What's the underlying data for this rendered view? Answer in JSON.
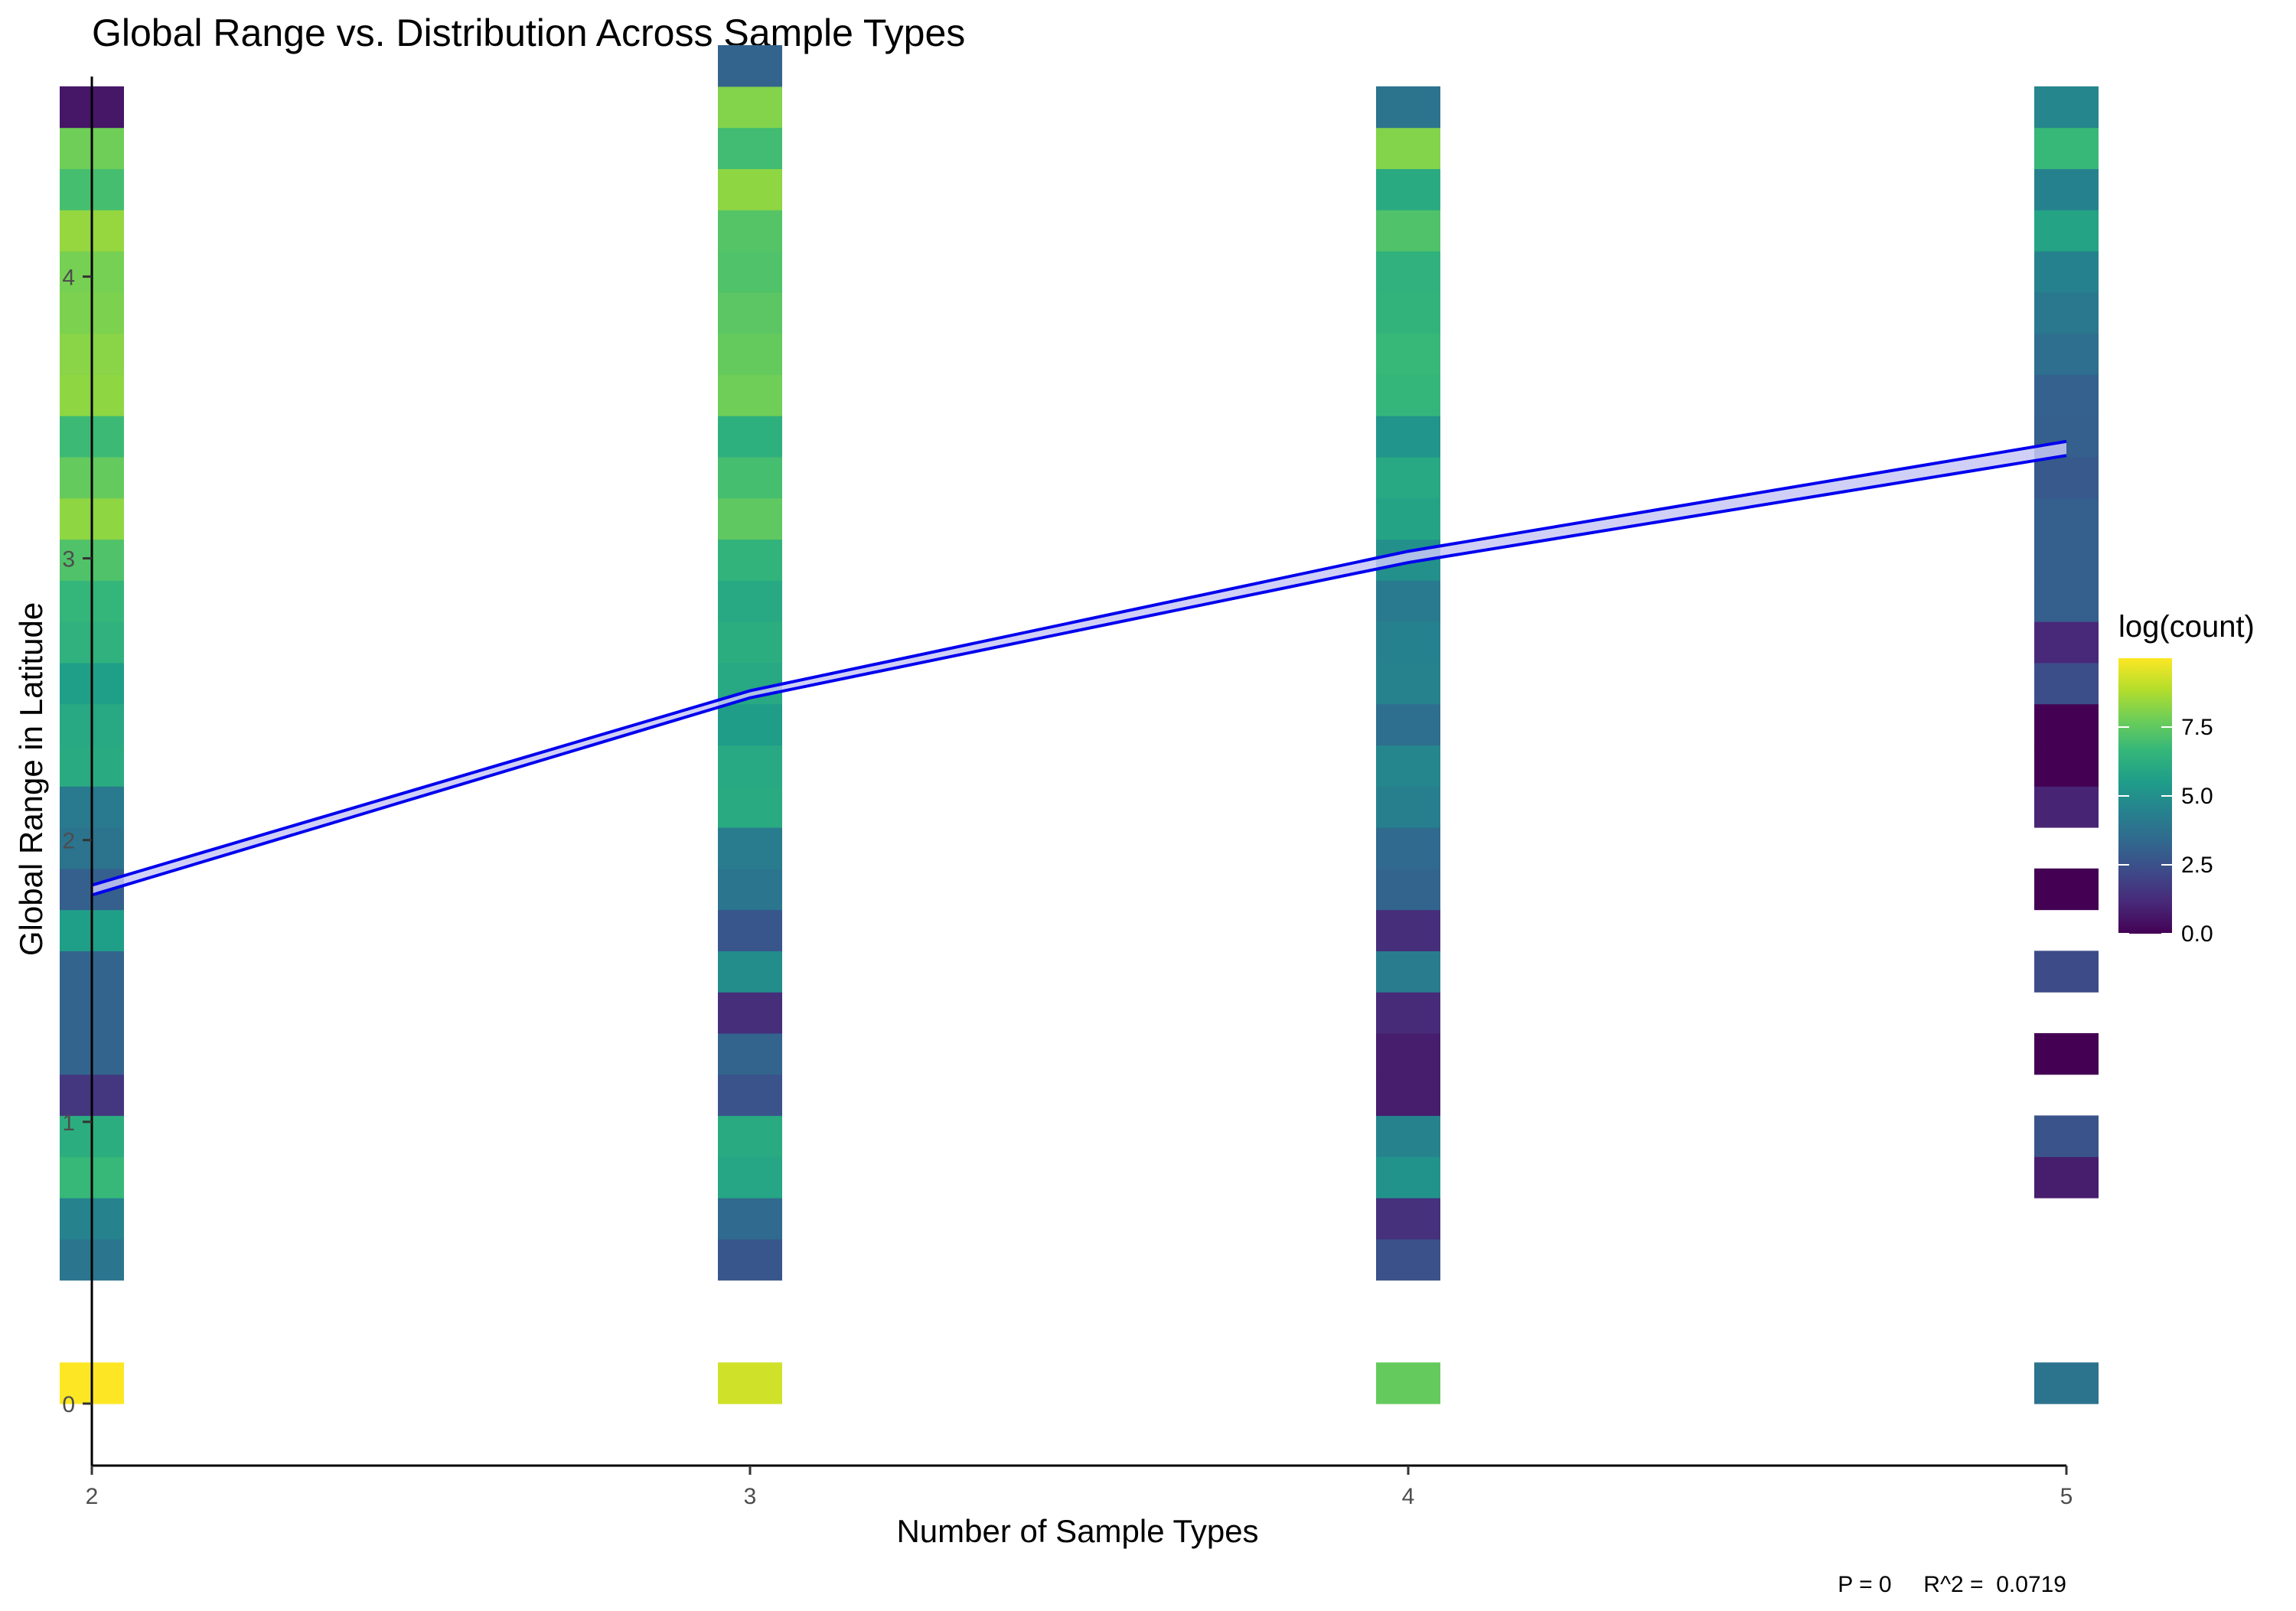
{
  "chart_data": {
    "type": "heatmap",
    "title": "Global Range vs. Distribution Across Sample Types",
    "xlabel": "Number of Sample Types",
    "ylabel": "Global Range in Latitude",
    "xlim": [
      2,
      5
    ],
    "ylim": [
      -0.22,
      4.71
    ],
    "x_ticks": [
      2,
      3,
      4,
      5
    ],
    "y_ticks": [
      0,
      1,
      2,
      3,
      4
    ],
    "x_tick_labels": [
      "2",
      "3",
      "4",
      "5"
    ],
    "y_tick_labels": [
      "0",
      "1",
      "2",
      "3",
      "4"
    ],
    "bin_height": 0.1461,
    "fill_scale": {
      "name": "log(count)",
      "min": 0,
      "max": 10.0,
      "breaks": [
        0,
        2.5,
        5,
        7.5
      ],
      "break_labels": [
        "0.0",
        "2.5",
        "5.0",
        "7.5"
      ],
      "palette": "viridis"
    },
    "columns": [
      {
        "x": 2,
        "cells": [
          {
            "y": 0.0,
            "fill": 10.0
          },
          {
            "y": 0.4383,
            "fill": 3.9
          },
          {
            "y": 0.5844,
            "fill": 4.5
          },
          {
            "y": 0.7305,
            "fill": 6.7
          },
          {
            "y": 0.8766,
            "fill": 6.2
          },
          {
            "y": 1.0227,
            "fill": 1.6
          },
          {
            "y": 1.1688,
            "fill": 3.2
          },
          {
            "y": 1.3149,
            "fill": 3.2
          },
          {
            "y": 1.461,
            "fill": 3.2
          },
          {
            "y": 1.6071,
            "fill": 5.6
          },
          {
            "y": 1.7532,
            "fill": 3.0
          },
          {
            "y": 1.8993,
            "fill": 3.8
          },
          {
            "y": 2.0454,
            "fill": 4.1
          },
          {
            "y": 2.1915,
            "fill": 6.1
          },
          {
            "y": 2.3376,
            "fill": 6.0
          },
          {
            "y": 2.4837,
            "fill": 5.6
          },
          {
            "y": 2.6298,
            "fill": 6.4
          },
          {
            "y": 2.7759,
            "fill": 6.6
          },
          {
            "y": 2.922,
            "fill": 7.2
          },
          {
            "y": 3.0681,
            "fill": 8.3
          },
          {
            "y": 3.2142,
            "fill": 7.6
          },
          {
            "y": 3.3603,
            "fill": 6.8
          },
          {
            "y": 3.5064,
            "fill": 8.3
          },
          {
            "y": 3.6525,
            "fill": 8.2
          },
          {
            "y": 3.7986,
            "fill": 8.0
          },
          {
            "y": 3.9447,
            "fill": 7.9
          },
          {
            "y": 4.0908,
            "fill": 8.4
          },
          {
            "y": 4.2369,
            "fill": 7.0
          },
          {
            "y": 4.383,
            "fill": 7.8
          },
          {
            "y": 4.5291,
            "fill": 0.6
          }
        ]
      },
      {
        "x": 3,
        "cells": [
          {
            "y": 0.0,
            "fill": 9.3
          },
          {
            "y": 0.4383,
            "fill": 2.7
          },
          {
            "y": 0.5844,
            "fill": 3.4
          },
          {
            "y": 0.7305,
            "fill": 5.9
          },
          {
            "y": 0.8766,
            "fill": 6.1
          },
          {
            "y": 1.0227,
            "fill": 2.6
          },
          {
            "y": 1.1688,
            "fill": 3.2
          },
          {
            "y": 1.3149,
            "fill": 1.3
          },
          {
            "y": 1.461,
            "fill": 4.9
          },
          {
            "y": 1.6071,
            "fill": 2.7
          },
          {
            "y": 1.7532,
            "fill": 3.9
          },
          {
            "y": 1.8993,
            "fill": 4.2
          },
          {
            "y": 2.0454,
            "fill": 6.1
          },
          {
            "y": 2.1915,
            "fill": 6.0
          },
          {
            "y": 2.3376,
            "fill": 5.5
          },
          {
            "y": 2.4837,
            "fill": 6.0
          },
          {
            "y": 2.6298,
            "fill": 6.2
          },
          {
            "y": 2.7759,
            "fill": 6.0
          },
          {
            "y": 2.922,
            "fill": 6.5
          },
          {
            "y": 3.0681,
            "fill": 7.5
          },
          {
            "y": 3.2142,
            "fill": 7.0
          },
          {
            "y": 3.3603,
            "fill": 6.3
          },
          {
            "y": 3.5064,
            "fill": 7.8
          },
          {
            "y": 3.6525,
            "fill": 7.6
          },
          {
            "y": 3.7986,
            "fill": 7.4
          },
          {
            "y": 3.9447,
            "fill": 7.2
          },
          {
            "y": 4.0908,
            "fill": 7.3
          },
          {
            "y": 4.2369,
            "fill": 8.3
          },
          {
            "y": 4.383,
            "fill": 6.9
          },
          {
            "y": 4.5291,
            "fill": 8.1
          },
          {
            "y": 4.6752,
            "fill": 3.2
          }
        ]
      },
      {
        "x": 4,
        "cells": [
          {
            "y": 0.0,
            "fill": 7.6
          },
          {
            "y": 0.4383,
            "fill": 2.5
          },
          {
            "y": 0.5844,
            "fill": 1.4
          },
          {
            "y": 0.7305,
            "fill": 5.1
          },
          {
            "y": 0.8766,
            "fill": 4.5
          },
          {
            "y": 1.0227,
            "fill": 0.8
          },
          {
            "y": 1.1688,
            "fill": 0.8
          },
          {
            "y": 1.3149,
            "fill": 1.2
          },
          {
            "y": 1.461,
            "fill": 4.2
          },
          {
            "y": 1.6071,
            "fill": 1.3
          },
          {
            "y": 1.7532,
            "fill": 3.2
          },
          {
            "y": 1.8993,
            "fill": 3.4
          },
          {
            "y": 2.0454,
            "fill": 4.3
          },
          {
            "y": 2.1915,
            "fill": 4.6
          },
          {
            "y": 2.3376,
            "fill": 3.6
          },
          {
            "y": 2.4837,
            "fill": 4.5
          },
          {
            "y": 2.6298,
            "fill": 4.4
          },
          {
            "y": 2.7759,
            "fill": 4.1
          },
          {
            "y": 2.922,
            "fill": 5.0
          },
          {
            "y": 3.0681,
            "fill": 5.8
          },
          {
            "y": 3.2142,
            "fill": 6.0
          },
          {
            "y": 3.3603,
            "fill": 5.2
          },
          {
            "y": 3.5064,
            "fill": 6.6
          },
          {
            "y": 3.6525,
            "fill": 6.7
          },
          {
            "y": 3.7986,
            "fill": 6.5
          },
          {
            "y": 3.9447,
            "fill": 6.4
          },
          {
            "y": 4.0908,
            "fill": 7.2
          },
          {
            "y": 4.2369,
            "fill": 6.1
          },
          {
            "y": 4.383,
            "fill": 8.1
          },
          {
            "y": 4.5291,
            "fill": 3.8
          }
        ]
      },
      {
        "x": 5,
        "cells": [
          {
            "y": 0.0,
            "fill": 3.8
          },
          {
            "y": 0.7305,
            "fill": 0.8
          },
          {
            "y": 0.8766,
            "fill": 2.6
          },
          {
            "y": 1.1688,
            "fill": 0.0
          },
          {
            "y": 1.461,
            "fill": 2.3
          },
          {
            "y": 1.7532,
            "fill": 0.0
          },
          {
            "y": 2.0454,
            "fill": 1.0
          },
          {
            "y": 2.1915,
            "fill": 0.0
          },
          {
            "y": 2.3376,
            "fill": 0.0
          },
          {
            "y": 2.4837,
            "fill": 2.4
          },
          {
            "y": 2.6298,
            "fill": 1.1
          },
          {
            "y": 2.7759,
            "fill": 3.0
          },
          {
            "y": 2.922,
            "fill": 3.0
          },
          {
            "y": 3.0681,
            "fill": 3.0
          },
          {
            "y": 3.2142,
            "fill": 2.8
          },
          {
            "y": 3.3603,
            "fill": 3.0
          },
          {
            "y": 3.5064,
            "fill": 3.1
          },
          {
            "y": 3.6525,
            "fill": 3.6
          },
          {
            "y": 3.7986,
            "fill": 4.0
          },
          {
            "y": 3.9447,
            "fill": 4.4
          },
          {
            "y": 4.0908,
            "fill": 5.8
          },
          {
            "y": 4.2369,
            "fill": 4.4
          },
          {
            "y": 4.383,
            "fill": 6.7
          },
          {
            "y": 4.5291,
            "fill": 4.6
          }
        ]
      }
    ],
    "fit_line": {
      "x": [
        2,
        3,
        4,
        5
      ],
      "y": [
        1.82,
        2.515,
        3.005,
        3.39
      ],
      "ci_low": [
        1.805,
        2.505,
        2.985,
        3.365
      ],
      "ci_high": [
        1.84,
        2.53,
        3.025,
        3.415
      ],
      "color": "#0000ee",
      "ribbon_color": "#c8c8f5"
    },
    "stats_text": "P = 0     R^2 =  0.0719"
  }
}
